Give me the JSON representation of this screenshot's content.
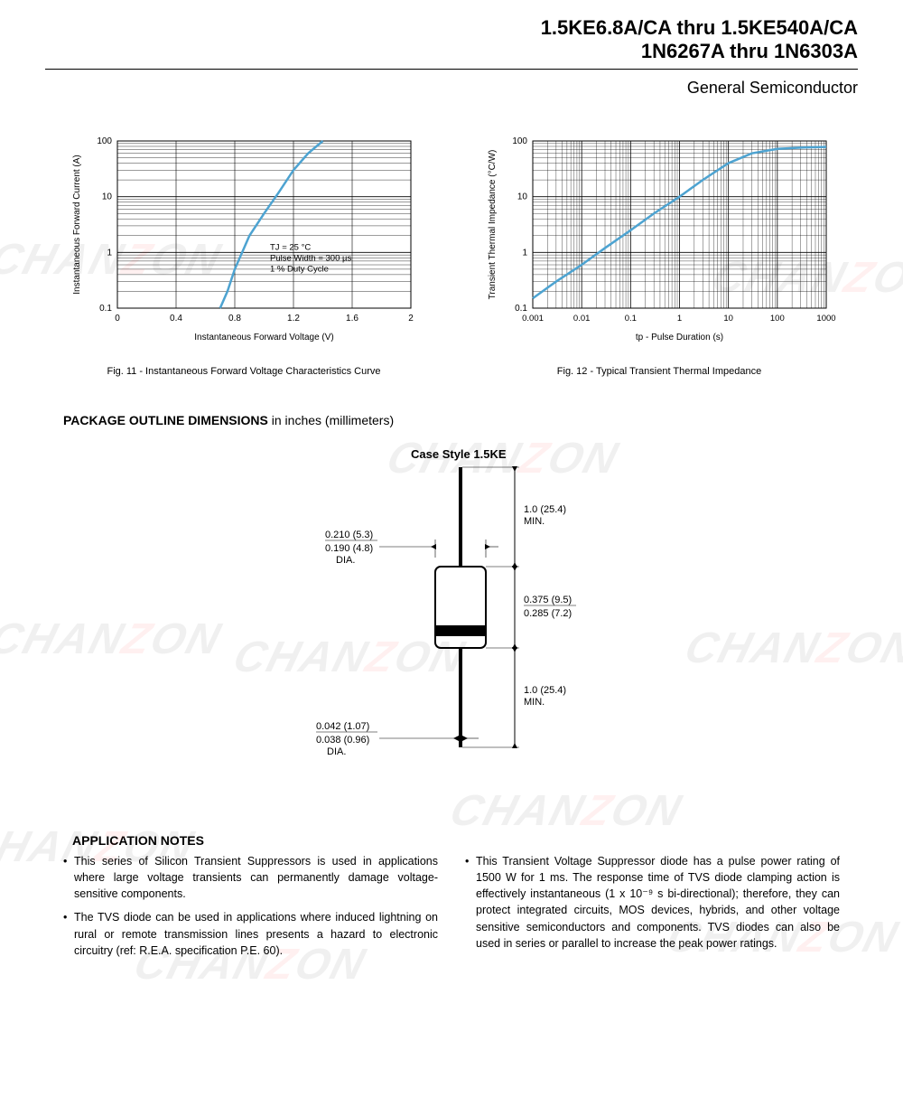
{
  "header": {
    "title1": "1.5KE6.8A/CA thru 1.5KE540A/CA",
    "title2": "1N6267A thru 1N6303A",
    "subtitle": "General Semiconductor"
  },
  "watermark_text": "CHANZON",
  "chart1": {
    "type": "line",
    "caption": "Fig. 11 - Instantaneous Forward Voltage Characteristics Curve",
    "xlabel": "Instantaneous Forward Voltage (V)",
    "ylabel": "Instantaneous Forward Current (A)",
    "xlim": [
      0,
      2.0
    ],
    "xticks": [
      0,
      0.4,
      0.8,
      1.2,
      1.6,
      2.0
    ],
    "ylim": [
      0.1,
      100
    ],
    "yticks": [
      0.1,
      1,
      10,
      100
    ],
    "yscale": "log",
    "line_color": "#4da3d1",
    "grid_color": "#000000",
    "background_color": "#ffffff",
    "annotation_lines": [
      "TJ = 25 °C",
      "Pulse Width = 300 µs",
      "1 % Duty Cycle"
    ],
    "data_points": [
      [
        0.7,
        0.1
      ],
      [
        0.75,
        0.2
      ],
      [
        0.8,
        0.5
      ],
      [
        0.85,
        1
      ],
      [
        0.9,
        2
      ],
      [
        1.0,
        5
      ],
      [
        1.1,
        12
      ],
      [
        1.2,
        30
      ],
      [
        1.3,
        60
      ],
      [
        1.4,
        100
      ]
    ]
  },
  "chart2": {
    "type": "line",
    "caption": "Fig. 12 - Typical Transient Thermal Impedance",
    "xlabel": "tp - Pulse Duration (s)",
    "ylabel": "Transient Thermal Impedance (°C/W)",
    "xlim": [
      0.001,
      1000
    ],
    "xticks": [
      0.001,
      0.01,
      0.1,
      1,
      10,
      100,
      1000
    ],
    "xscale": "log",
    "ylim": [
      0.1,
      100
    ],
    "yticks": [
      0.1,
      1,
      10,
      100
    ],
    "yscale": "log",
    "line_color": "#4da3d1",
    "grid_color": "#000000",
    "background_color": "#ffffff",
    "data_points": [
      [
        0.001,
        0.15
      ],
      [
        0.003,
        0.3
      ],
      [
        0.01,
        0.6
      ],
      [
        0.03,
        1.2
      ],
      [
        0.1,
        2.5
      ],
      [
        0.3,
        5
      ],
      [
        1,
        10
      ],
      [
        3,
        20
      ],
      [
        10,
        40
      ],
      [
        30,
        60
      ],
      [
        100,
        72
      ],
      [
        300,
        76
      ],
      [
        1000,
        78
      ]
    ]
  },
  "package_section": {
    "title_bold": "PACKAGE OUTLINE DIMENSIONS",
    "title_light": " in inches (millimeters)",
    "case_label": "Case Style 1.5KE",
    "dims": {
      "lead_length": "1.0 (25.4)\nMIN.",
      "body_dia_top": "0.210 (5.3)",
      "body_dia_bot": "0.190 (4.8)",
      "body_dia_suffix": "DIA.",
      "body_len_top": "0.375 (9.5)",
      "body_len_bot": "0.285 (7.2)",
      "lead_dia_top": "0.042 (1.07)",
      "lead_dia_bot": "0.038 (0.96)",
      "lead_dia_suffix": "DIA."
    }
  },
  "app_notes": {
    "title": "APPLICATION NOTES",
    "left": [
      "This series of Silicon Transient Suppressors is used in applications where large voltage transients can permanently damage voltage-sensitive components.",
      "The TVS diode can be used in applications where induced lightning on rural or remote transmission lines presents a hazard to electronic circuitry (ref: R.E.A. specification P.E. 60)."
    ],
    "right": [
      "This Transient Voltage Suppressor diode has a pulse power rating of 1500 W for 1 ms. The response time of TVS diode clamping action is effectively instantaneous (1 x 10⁻⁹ s bi-directional); therefore, they can protect integrated circuits, MOS devices, hybrids, and other voltage sensitive semiconductors and components. TVS diodes can also be used in series or parallel to increase the peak power ratings."
    ]
  }
}
